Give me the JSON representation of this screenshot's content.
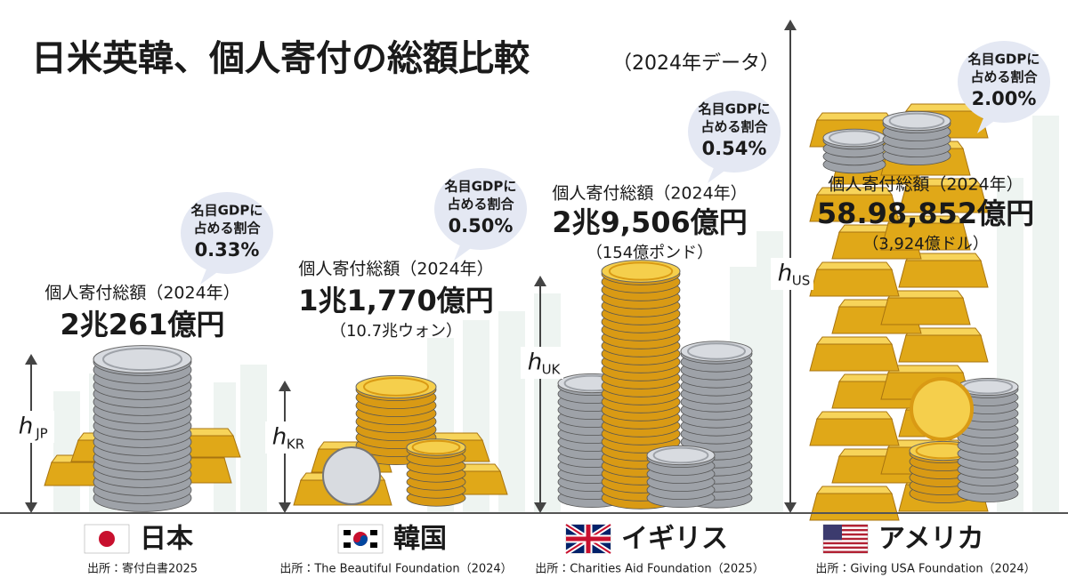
{
  "header": {
    "title": "日米英韓、個人寄付の総額比較",
    "subtitle": "（2024年データ）"
  },
  "countries": [
    {
      "name": "日本",
      "label": "個人寄付総額（2024年）",
      "amount": "2兆261億円",
      "conversion": null,
      "gdp_bubble": {
        "lines": [
          "名目GDPに",
          "占める割合"
        ],
        "share": "0.33%"
      },
      "height_label": {
        "base": "h",
        "sub": "JP"
      },
      "source": "出所：寄付白書2025"
    },
    {
      "name": "韓国",
      "label": "個人寄付総額（2024年）",
      "amount": "1兆1,770億円",
      "conversion": "（10.7兆ウォン）",
      "gdp_bubble": {
        "lines": [
          "名目GDPに",
          "占める割合"
        ],
        "share": "0.50%"
      },
      "height_label": {
        "base": "h",
        "sub": "KR"
      },
      "source": "出所：The Beautiful Foundation（2024）"
    },
    {
      "name": "イギリス",
      "label": "個人寄付総額（2024年）",
      "amount": "2兆9,506億円",
      "conversion": "（154億ポンド）",
      "gdp_bubble": {
        "lines": [
          "名目GDPに",
          "占める割合"
        ],
        "share": "0.54%"
      },
      "height_label": {
        "base": "h",
        "sub": "UK"
      },
      "source": "出所：Charities Aid Foundation（2025）"
    },
    {
      "name": "アメリカ",
      "label": "個人寄付総額（2024年）",
      "amount": "58.98,852億円",
      "conversion": "（3,924億ドル）",
      "gdp_bubble": {
        "lines": [
          "名目GDPに",
          "占める割合"
        ],
        "share": "2.00%"
      },
      "height_label": {
        "base": "h",
        "sub": "US"
      },
      "source": "出所：Giving USA Foundation（2024）"
    }
  ]
}
